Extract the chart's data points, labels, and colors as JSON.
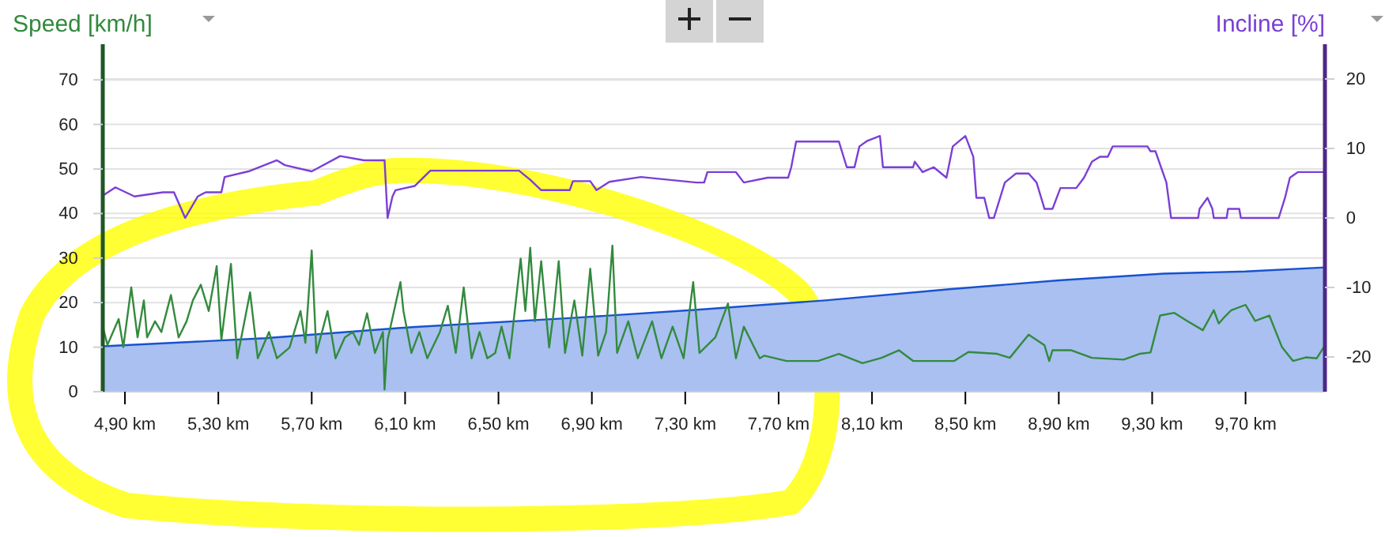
{
  "chart_data": {
    "type": "line",
    "ylabel": "Speed [km/h]",
    "y2label": "Incline [%]",
    "xlim": [
      4.805,
      10.04
    ],
    "xticks": [
      {
        "value": 4.9,
        "label": "4,90 km"
      },
      {
        "value": 5.3,
        "label": "5,30 km"
      },
      {
        "value": 5.7,
        "label": "5,70 km"
      },
      {
        "value": 6.1,
        "label": "6,10 km"
      },
      {
        "value": 6.5,
        "label": "6,50 km"
      },
      {
        "value": 6.9,
        "label": "6,90 km"
      },
      {
        "value": 7.3,
        "label": "7,30 km"
      },
      {
        "value": 7.7,
        "label": "7,70 km"
      },
      {
        "value": 8.1,
        "label": "8,10 km"
      },
      {
        "value": 8.5,
        "label": "8,50 km"
      },
      {
        "value": 8.9,
        "label": "8,90 km"
      },
      {
        "value": 9.3,
        "label": "9,30 km"
      },
      {
        "value": 9.7,
        "label": "9,70 km"
      }
    ],
    "ylim": [
      0,
      78
    ],
    "yticks": [
      0,
      10,
      20,
      30,
      40,
      50,
      60,
      70
    ],
    "y2lim": [
      -25,
      25
    ],
    "y2ticks": [
      -20,
      -10,
      0,
      10,
      20
    ],
    "grid": "y",
    "series": [
      {
        "type": "area",
        "color": "#a9c0f0",
        "x": [
          4.805,
          5.5,
          6.13,
          6.8,
          7.35,
          7.9,
          8.43,
          8.9,
          9.35,
          9.7,
          10.04
        ],
        "values": [
          10.2,
          12,
          14.5,
          16.5,
          18.4,
          20.5,
          23,
          25,
          26.5,
          27,
          27.9
        ]
      },
      {
        "color": "#7b3fd6",
        "axis": "y2",
        "x": [
          4.805,
          4.859,
          4.941,
          5.063,
          5.11,
          5.158,
          5.212,
          5.246,
          5.313,
          5.327,
          5.429,
          5.551,
          5.585,
          5.7,
          5.822,
          5.924,
          6.012,
          6.025,
          6.046,
          6.059,
          6.141,
          6.208,
          6.588,
          6.636,
          6.683,
          6.805,
          6.819,
          6.893,
          6.92,
          6.975,
          7.11,
          7.347,
          7.381,
          7.395,
          7.517,
          7.551,
          7.653,
          7.741,
          7.754,
          7.775,
          7.958,
          7.992,
          8.025,
          8.046,
          8.08,
          8.134,
          8.147,
          8.276,
          8.283,
          8.317,
          8.364,
          8.419,
          8.446,
          8.5,
          8.534,
          8.547,
          8.581,
          8.602,
          8.622,
          8.669,
          8.717,
          8.771,
          8.805,
          8.839,
          8.873,
          8.907,
          8.975,
          9.008,
          9.042,
          9.076,
          9.11,
          9.131,
          9.28,
          9.293,
          9.314,
          9.361,
          9.381,
          9.497,
          9.503,
          9.537,
          9.558,
          9.564,
          9.619,
          9.625,
          9.673,
          9.68,
          9.842,
          9.869,
          9.89,
          9.924,
          10.04
        ],
        "values": [
          3.2,
          4.4,
          3.1,
          3.7,
          3.7,
          0,
          3.1,
          3.7,
          3.7,
          5.9,
          6.7,
          8.3,
          7.6,
          6.7,
          8.9,
          8.3,
          8.3,
          0,
          3.1,
          4,
          4.6,
          6.8,
          6.8,
          5.5,
          4,
          4,
          5.3,
          5.3,
          4,
          5.2,
          5.9,
          5.1,
          5.1,
          6.6,
          6.6,
          5.1,
          5.8,
          5.8,
          7.3,
          11,
          11,
          7.3,
          7.3,
          10.3,
          11.1,
          11.8,
          7.3,
          7.3,
          8.1,
          6.6,
          7.3,
          5.8,
          10.3,
          11.8,
          8.8,
          2.9,
          2.9,
          0,
          0,
          5.1,
          6.4,
          6.4,
          5.1,
          1.3,
          1.3,
          4.3,
          4.3,
          5.8,
          8.1,
          8.8,
          8.8,
          10.3,
          10.3,
          9.6,
          9.6,
          5.1,
          0,
          0,
          1.3,
          2.9,
          1.3,
          0,
          0,
          1.3,
          1.3,
          0,
          0,
          2.9,
          5.8,
          6.6,
          6.6
        ]
      },
      {
        "color": "#338a3e",
        "x": [
          4.805,
          4.825,
          4.873,
          4.893,
          4.927,
          4.954,
          4.981,
          4.995,
          5.029,
          5.056,
          5.097,
          5.13,
          5.164,
          5.191,
          5.225,
          5.259,
          5.293,
          5.313,
          5.354,
          5.381,
          5.436,
          5.469,
          5.517,
          5.551,
          5.605,
          5.652,
          5.673,
          5.7,
          5.72,
          5.768,
          5.802,
          5.842,
          5.876,
          5.903,
          5.937,
          5.971,
          6.005,
          6.012,
          6.025,
          6.08,
          6.093,
          6.127,
          6.161,
          6.195,
          6.249,
          6.283,
          6.317,
          6.351,
          6.385,
          6.419,
          6.452,
          6.486,
          6.513,
          6.547,
          6.595,
          6.615,
          6.636,
          6.656,
          6.683,
          6.717,
          6.737,
          6.758,
          6.785,
          6.825,
          6.859,
          6.893,
          6.927,
          6.961,
          6.988,
          7.008,
          7.056,
          7.097,
          7.158,
          7.198,
          7.246,
          7.293,
          7.334,
          7.361,
          7.429,
          7.483,
          7.517,
          7.551,
          7.619,
          7.639,
          7.734,
          7.869,
          7.958,
          8.059,
          8.141,
          8.215,
          8.276,
          8.452,
          8.513,
          8.636,
          8.69,
          8.771,
          8.839,
          8.859,
          8.873,
          8.954,
          9.042,
          9.178,
          9.246,
          9.293,
          9.334,
          9.395,
          9.449,
          9.517,
          9.564,
          9.585,
          9.605,
          9.639,
          9.7,
          9.741,
          9.802,
          9.856,
          9.903,
          9.958,
          10.005,
          10.04
        ],
        "values": [
          14.6,
          10.5,
          16.3,
          10,
          23.4,
          12.2,
          20.5,
          12.2,
          15.8,
          13.4,
          21.7,
          12.2,
          15.8,
          20.5,
          24,
          18.1,
          28.2,
          11.6,
          28.7,
          7.5,
          22.3,
          7.5,
          13.4,
          7.5,
          9.9,
          18.1,
          11,
          31.7,
          8.7,
          18.1,
          7.5,
          12.2,
          13.4,
          10.5,
          17.6,
          8.7,
          13.4,
          0.5,
          11.6,
          24.6,
          18.1,
          8.7,
          13.4,
          7.5,
          13.4,
          19.3,
          8.7,
          23.4,
          7.5,
          13.4,
          7.5,
          8.7,
          14.6,
          7.5,
          29.9,
          18.1,
          32.3,
          15.8,
          29.3,
          9.9,
          18.1,
          29.3,
          8.7,
          20.5,
          8.1,
          27.6,
          8.1,
          13.4,
          32.8,
          8.7,
          15.8,
          7.5,
          15.8,
          7.5,
          14.6,
          7.5,
          24.6,
          8.7,
          12.2,
          19.8,
          7.5,
          14.6,
          7.5,
          8.1,
          6.9,
          6.9,
          8.5,
          6.4,
          7.6,
          9.3,
          6.9,
          6.9,
          8.9,
          8.5,
          7.6,
          12.8,
          10.4,
          6.9,
          9.3,
          9.3,
          7.6,
          7.2,
          8.5,
          8.8,
          17.1,
          17.7,
          15.9,
          13.8,
          18.3,
          15.3,
          16.5,
          18.3,
          19.5,
          15.9,
          17.1,
          10,
          6.9,
          7.7,
          7.5,
          10.4
        ]
      }
    ]
  }
}
